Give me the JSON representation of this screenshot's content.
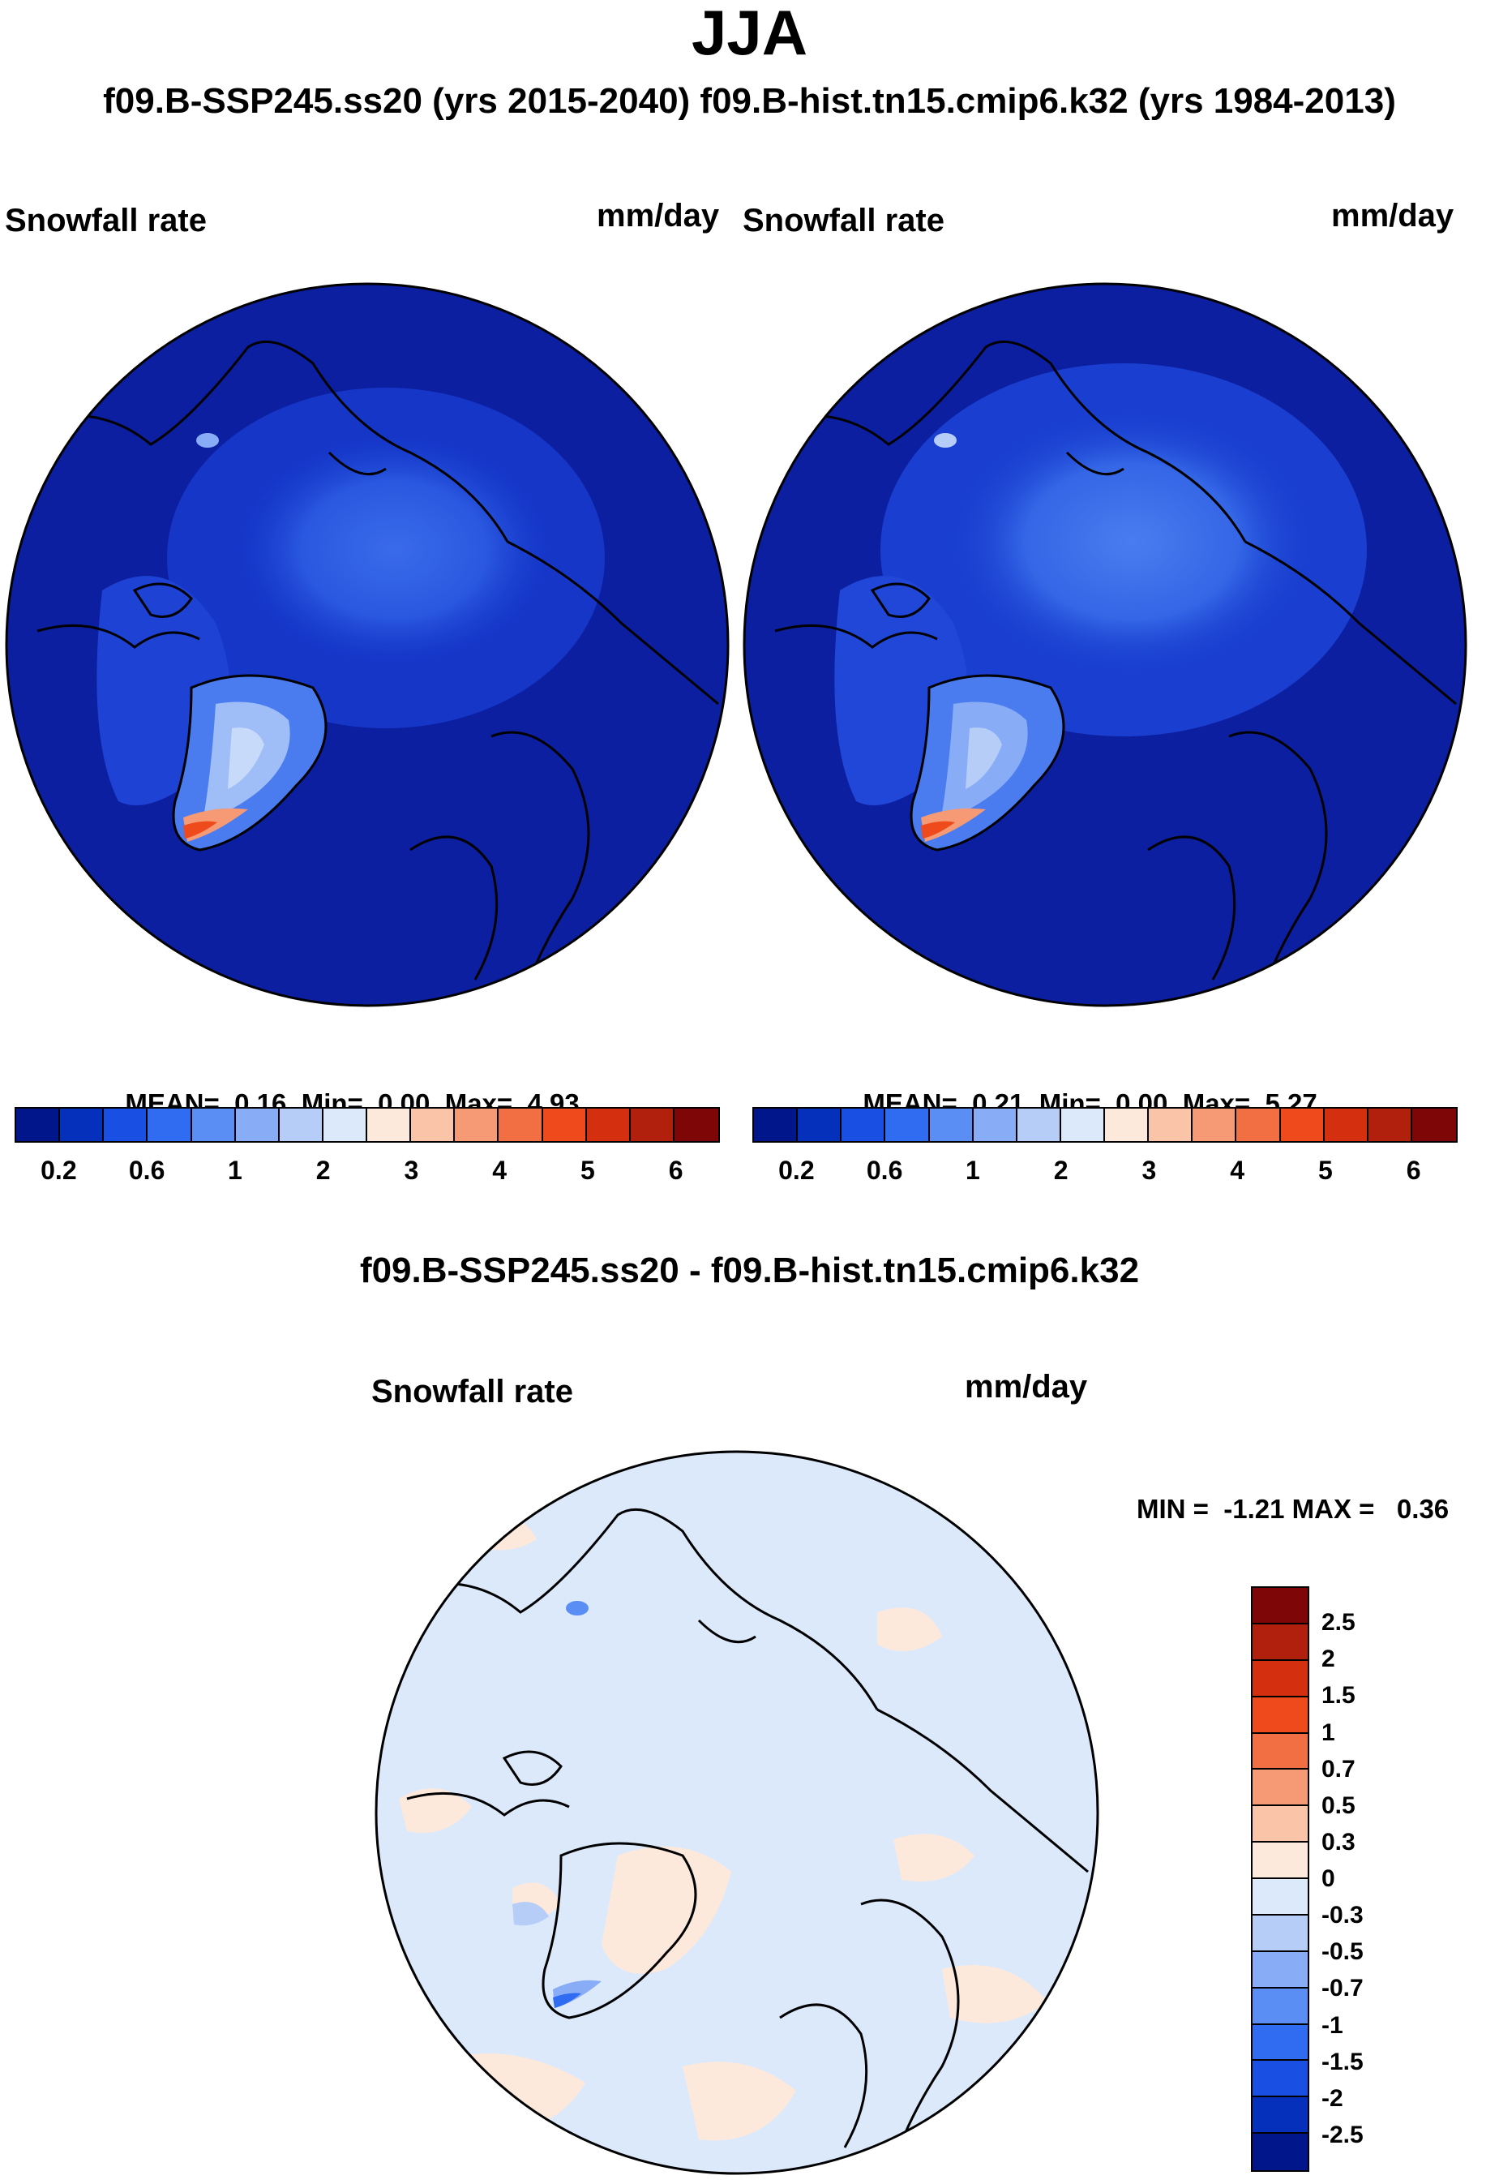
{
  "figure": {
    "title": "JJA",
    "subtitle": "f09.B-SSP245.ss20 (yrs 2015-2040)  f09.B-hist.tn15.cmip6.k32 (yrs 1984-2013)"
  },
  "chart_data": [
    {
      "type": "heatmap",
      "panel": "left",
      "variable": "Snowfall rate",
      "units": "mm/day",
      "projection": "north polar stereographic",
      "stats": {
        "mean": "0.16",
        "min": "0.00",
        "max": "4.93"
      },
      "stats_labels": {
        "mean": "MEAN=",
        "min": "Min=",
        "max": "Max="
      },
      "colorbar": {
        "levels": [
          0.2,
          0.4,
          0.6,
          0.8,
          1,
          1.5,
          2,
          2.5,
          3,
          3.5,
          4,
          4.5,
          5,
          5.5,
          6
        ],
        "tick_labels": [
          "0.2",
          "0.6",
          "1",
          "2",
          "3",
          "4",
          "5",
          "6"
        ],
        "colors": [
          "#00168a",
          "#0530bb",
          "#1a4fe3",
          "#2f6cf2",
          "#5a8ef5",
          "#88acf5",
          "#b6cdf8",
          "#dce9fb",
          "#fde9dc",
          "#f9c4a8",
          "#f59a74",
          "#f26e43",
          "#ef4a1b",
          "#d42f0e",
          "#b0200c",
          "#7e0607"
        ]
      }
    },
    {
      "type": "heatmap",
      "panel": "right",
      "variable": "Snowfall rate",
      "units": "mm/day",
      "projection": "north polar stereographic",
      "stats": {
        "mean": "0.21",
        "min": "0.00",
        "max": "5.27"
      },
      "stats_labels": {
        "mean": "MEAN=",
        "min": "Min=",
        "max": "Max="
      },
      "colorbar": {
        "levels": [
          0.2,
          0.4,
          0.6,
          0.8,
          1,
          1.5,
          2,
          2.5,
          3,
          3.5,
          4,
          4.5,
          5,
          5.5,
          6
        ],
        "tick_labels": [
          "0.2",
          "0.6",
          "1",
          "2",
          "3",
          "4",
          "5",
          "6"
        ],
        "colors": [
          "#00168a",
          "#0530bb",
          "#1a4fe3",
          "#2f6cf2",
          "#5a8ef5",
          "#88acf5",
          "#b6cdf8",
          "#dce9fb",
          "#fde9dc",
          "#f9c4a8",
          "#f59a74",
          "#f26e43",
          "#ef4a1b",
          "#d42f0e",
          "#b0200c",
          "#7e0607"
        ]
      }
    },
    {
      "type": "heatmap",
      "panel": "difference",
      "title": "f09.B-SSP245.ss20 - f09.B-hist.tn15.cmip6.k32",
      "variable": "Snowfall rate",
      "units": "mm/day",
      "projection": "north polar stereographic",
      "minmax_text": "MIN =  -1.21 MAX =   0.36",
      "stats": {
        "min": -1.21,
        "max": 0.36
      },
      "colorbar": {
        "orientation": "vertical",
        "tick_labels": [
          "2.5",
          "2",
          "1.5",
          "1",
          "0.7",
          "0.5",
          "0.3",
          "0",
          "-0.3",
          "-0.5",
          "-0.7",
          "-1",
          "-1.5",
          "-2",
          "-2.5"
        ],
        "colors_top_to_bottom": [
          "#7e0607",
          "#b0200c",
          "#d42f0e",
          "#ef4a1b",
          "#f26e43",
          "#f59a74",
          "#f9c4a8",
          "#fde9dc",
          "#dce9fb",
          "#b6cdf8",
          "#88acf5",
          "#5a8ef5",
          "#2f6cf2",
          "#1a4fe3",
          "#0530bb",
          "#00168a"
        ]
      }
    }
  ]
}
